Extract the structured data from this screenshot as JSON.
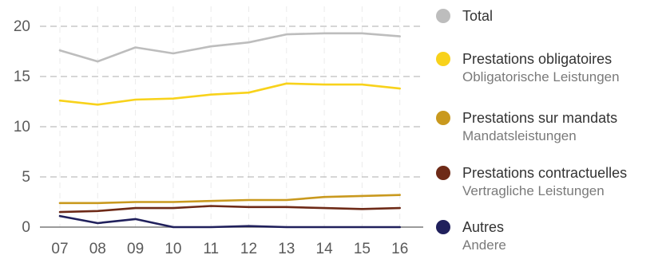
{
  "chart_data": {
    "type": "line",
    "x": [
      "07",
      "08",
      "09",
      "10",
      "11",
      "12",
      "13",
      "14",
      "15",
      "16"
    ],
    "yticks": [
      "0",
      "5",
      "10",
      "15",
      "20"
    ],
    "ylim": [
      0,
      21
    ],
    "grid": true,
    "legend_position": "right",
    "series": [
      {
        "name": "Total",
        "subname": "",
        "color": "#bdbdbd",
        "values": [
          17.6,
          16.5,
          17.9,
          17.3,
          18.0,
          18.4,
          19.2,
          19.3,
          19.3,
          19.0
        ]
      },
      {
        "name": "Prestations obligatoires",
        "subname": "Obligatorische Leistungen",
        "color": "#f8d21b",
        "values": [
          12.6,
          12.2,
          12.7,
          12.8,
          13.2,
          13.4,
          14.3,
          14.2,
          14.2,
          13.8
        ]
      },
      {
        "name": "Prestations sur mandats",
        "subname": "Mandatsleistungen",
        "color": "#c9991e",
        "values": [
          2.4,
          2.4,
          2.5,
          2.5,
          2.6,
          2.7,
          2.7,
          3.0,
          3.1,
          3.2
        ]
      },
      {
        "name": "Prestations contractuelles",
        "subname": "Vertragliche Leistungen",
        "color": "#6e2a17",
        "values": [
          1.5,
          1.6,
          1.9,
          1.9,
          2.1,
          2.0,
          2.0,
          1.9,
          1.8,
          1.9
        ]
      },
      {
        "name": "Autres",
        "subname": "Andere",
        "color": "#20205c",
        "values": [
          1.1,
          0.4,
          0.8,
          0.0,
          0.0,
          0.1,
          0.0,
          0.0,
          0.0,
          0.0
        ]
      }
    ]
  }
}
